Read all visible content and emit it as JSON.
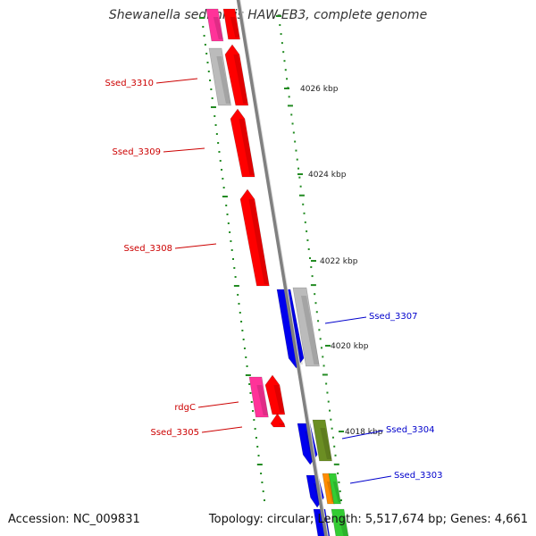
{
  "title": "Shewanella sediminis HAW-EB3, complete genome",
  "footer": {
    "accession": "Accession: NC_009831",
    "summary": "Topology: circular; Length: 5,517,674 bp; Genes: 4,661"
  },
  "colors": {
    "red": "#ff0000",
    "pink": "#ff3399",
    "gray": "#bbbbbb",
    "blue": "#0000ee",
    "olive": "#6b8e23",
    "orange": "#ff8c00",
    "green": "#33cc33",
    "tick_green": "#228b22",
    "backbone": "#808080",
    "label_red": "#cc0000",
    "label_blue": "#0000cc"
  },
  "scale_labels": [
    "4026 kbp",
    "4024 kbp",
    "4022 kbp",
    "4020 kbp",
    "4018 kbp"
  ],
  "gene_labels": [
    {
      "text": "Ssed_3310",
      "color": "label_red"
    },
    {
      "text": "Ssed_3309",
      "color": "label_red"
    },
    {
      "text": "Ssed_3308",
      "color": "label_red"
    },
    {
      "text": "rdgC",
      "color": "label_red"
    },
    {
      "text": "Ssed_3305",
      "color": "label_red"
    },
    {
      "text": "Ssed_3307",
      "color": "label_blue"
    },
    {
      "text": "Ssed_3304",
      "color": "label_blue"
    },
    {
      "text": "Ssed_3303",
      "color": "label_blue"
    }
  ]
}
